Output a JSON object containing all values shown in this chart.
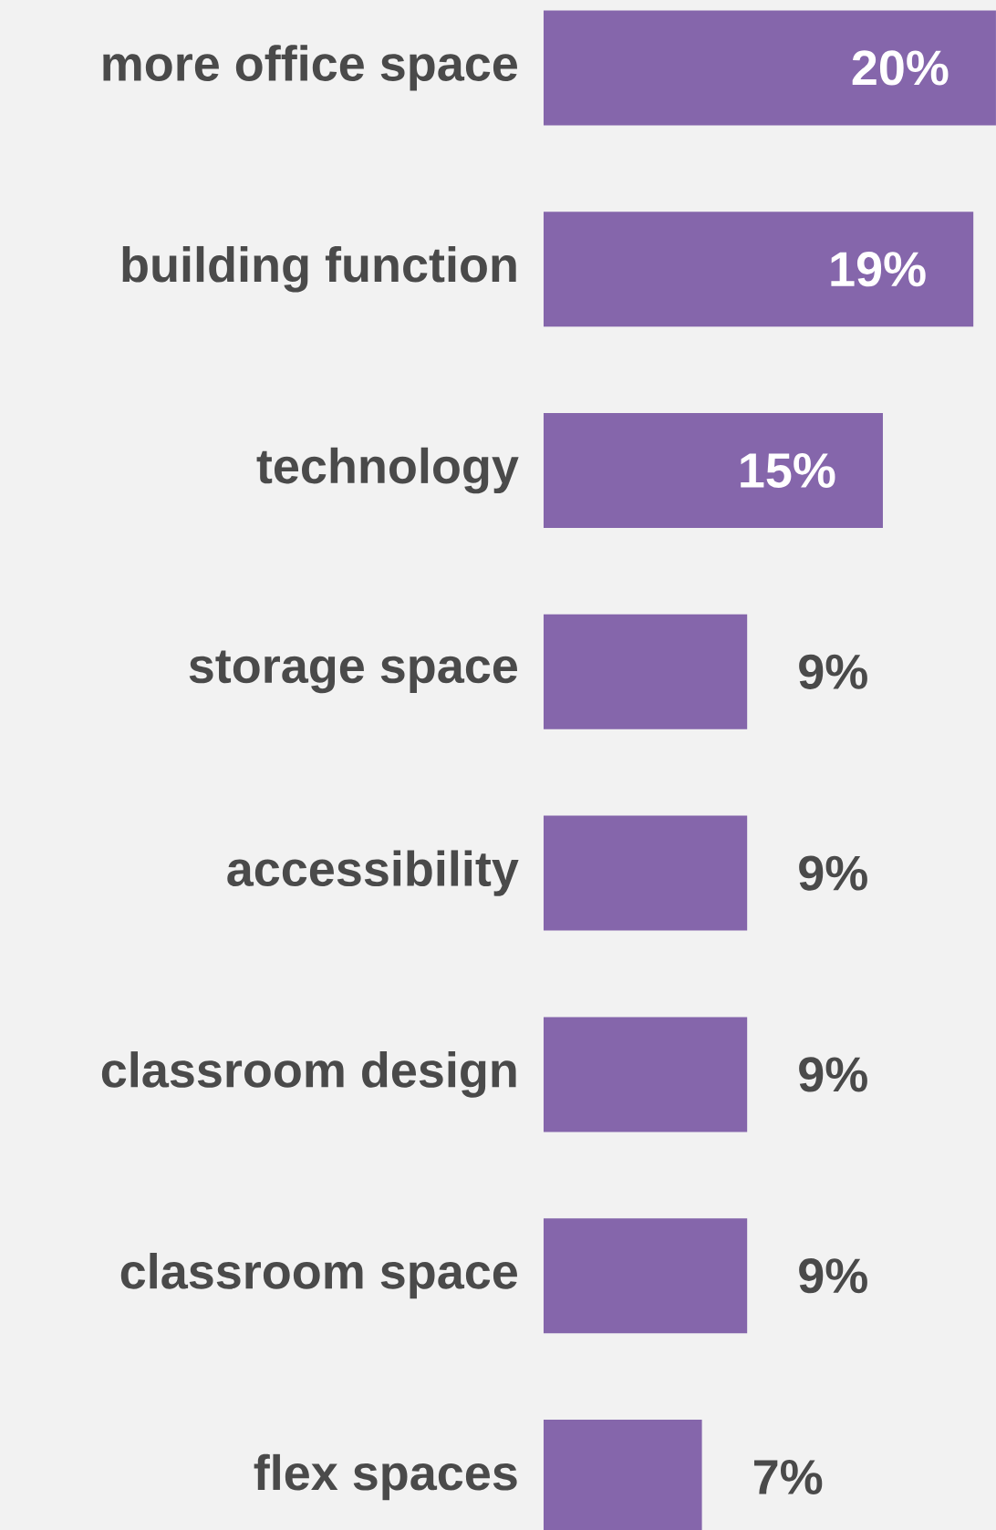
{
  "chart_data": {
    "type": "bar",
    "orientation": "horizontal",
    "categories": [
      "more office space",
      "building function",
      "technology",
      "storage space",
      "accessibility",
      "classroom design",
      "classroom space",
      "flex spaces"
    ],
    "values": [
      20,
      19,
      15,
      9,
      9,
      9,
      9,
      7
    ],
    "value_labels": [
      "20%",
      "19%",
      "15%",
      "9%",
      "9%",
      "9%",
      "9%",
      "7%"
    ],
    "color": "#8566ab"
  }
}
